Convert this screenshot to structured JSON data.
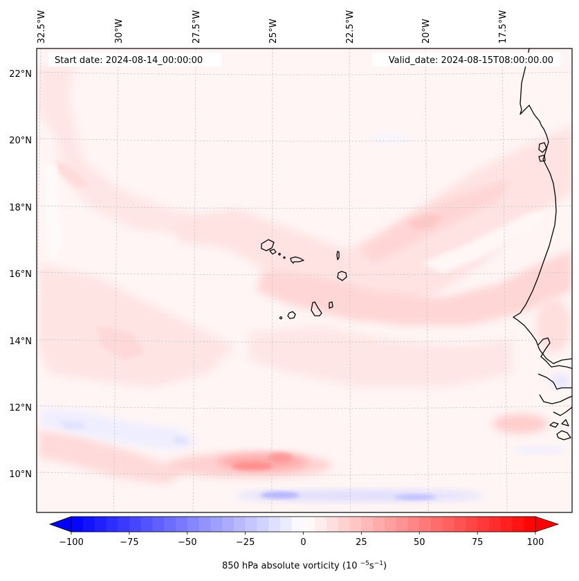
{
  "chart_data": {
    "type": "heatmap",
    "subtype": "filled-contour-map",
    "title": "",
    "annotations": {
      "start_date": "Start date: 2024-08-14_00:00:00",
      "valid_date": "Valid_date: 2024-08-15T08:00:00.00"
    },
    "variable": "850 hPa absolute vorticity",
    "units_label": "850 hPa absolute vorticity (10⁻⁵s⁻¹)",
    "xlabel": "",
    "ylabel": "",
    "lon_range": [
      -33.0,
      -15.3
    ],
    "lat_range": [
      9.0,
      22.6
    ],
    "grid": true,
    "lon_ticks": [
      {
        "value": -32.5,
        "label": "32.5°W"
      },
      {
        "value": -30.0,
        "label": "30°W"
      },
      {
        "value": -27.5,
        "label": "27.5°W"
      },
      {
        "value": -25.0,
        "label": "25°W"
      },
      {
        "value": -22.5,
        "label": "22.5°W"
      },
      {
        "value": -20.0,
        "label": "20°W"
      },
      {
        "value": -17.5,
        "label": "17.5°W"
      }
    ],
    "lat_ticks": [
      {
        "value": 22,
        "label": "22°N"
      },
      {
        "value": 20,
        "label": "20°N"
      },
      {
        "value": 18,
        "label": "18°N"
      },
      {
        "value": 16,
        "label": "16°N"
      },
      {
        "value": 14,
        "label": "14°N"
      },
      {
        "value": 12,
        "label": "12°N"
      },
      {
        "value": 10,
        "label": "10°N"
      }
    ],
    "colorbar": {
      "cmap": "bwr",
      "vmin": -100,
      "vmax": 100,
      "levels_step": 5,
      "extend": "both",
      "orientation": "horizontal",
      "placement": "bottom",
      "ticks": [
        {
          "value": -100,
          "label": "−100"
        },
        {
          "value": -75,
          "label": "−75"
        },
        {
          "value": -50,
          "label": "−50"
        },
        {
          "value": -25,
          "label": "−25"
        },
        {
          "value": 0,
          "label": "0"
        },
        {
          "value": 25,
          "label": "25"
        },
        {
          "value": 50,
          "label": "50"
        },
        {
          "value": 75,
          "label": "75"
        },
        {
          "value": 100,
          "label": "100"
        }
      ]
    },
    "background_value": 3,
    "features": [
      {
        "name": "southwest-northeast vorticity band",
        "lon_start": -29.5,
        "lat_start": 17.3,
        "lon_end": -17.5,
        "lat_end": 19.2,
        "value": 12
      },
      {
        "name": "band maximum near 20W 17.6N",
        "lon": -20.2,
        "lat": 17.6,
        "value": 22
      },
      {
        "name": "band south of Cape Verde",
        "lon": -22.0,
        "lat": 15.2,
        "value": 12
      },
      {
        "name": "max near 25.5W 10.2N",
        "lon": -25.5,
        "lat": 10.3,
        "value": 35
      },
      {
        "name": "negative streak along 9.3N",
        "lon_start": -26.0,
        "lon_end": -18.5,
        "lat": 9.4,
        "value": -22
      },
      {
        "name": "weak negative patch near 30W 11N",
        "lon": -30.5,
        "lat": 11.2,
        "value": -8
      },
      {
        "name": "max near 16.5W 11.5N",
        "lon": -16.5,
        "lat": 11.5,
        "value": 18
      },
      {
        "name": "northwest pink plume",
        "lon": -31.5,
        "lat": 19.0,
        "value": 8
      }
    ],
    "coastline": "West Africa (Mauritania, Senegal, Gambia, Guinea-Bissau) and Cape Verde islands"
  }
}
